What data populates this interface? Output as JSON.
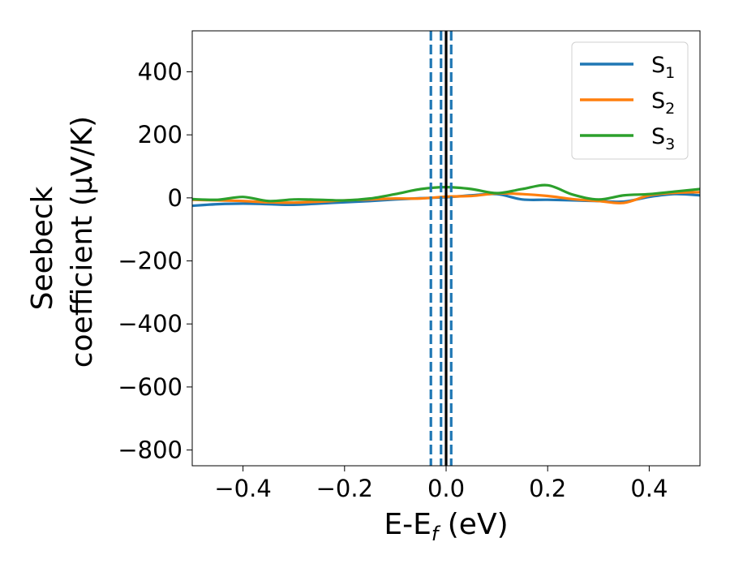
{
  "chart_data": {
    "type": "line",
    "xlabel": {
      "main": "E-E",
      "sub": "f",
      "unit": " (eV)"
    },
    "ylabel": {
      "line1": "Seebeck",
      "line2": "coefficient  (μV/K)"
    },
    "xlim": [
      -0.5,
      0.5
    ],
    "ylim": [
      -850,
      530
    ],
    "xticks": [
      -0.4,
      -0.2,
      0.0,
      0.2,
      0.4
    ],
    "xtick_labels": [
      "−0.4",
      "−0.2",
      "0.0",
      "0.2",
      "0.4"
    ],
    "yticks": [
      400,
      200,
      0,
      -200,
      -400,
      -600,
      -800
    ],
    "ytick_labels": [
      "400",
      "200",
      "0",
      "−200",
      "−400",
      "−600",
      "−800"
    ],
    "grid": false,
    "legend_position": "top-right",
    "x": [
      -0.5,
      -0.45,
      -0.4,
      -0.35,
      -0.3,
      -0.25,
      -0.2,
      -0.15,
      -0.1,
      -0.05,
      0.0,
      0.05,
      0.1,
      0.15,
      0.2,
      0.25,
      0.3,
      0.35,
      0.4,
      0.45,
      0.5
    ],
    "series": [
      {
        "name": {
          "base": "S",
          "sub": "1"
        },
        "color": "#1f77b4",
        "values": [
          -25,
          -20,
          -18,
          -20,
          -22,
          -18,
          -14,
          -10,
          -5,
          -1,
          2,
          8,
          12,
          -5,
          -6,
          -8,
          -10,
          -12,
          3,
          12,
          8
        ]
      },
      {
        "name": {
          "base": "S",
          "sub": "2"
        },
        "color": "#ff7f0e",
        "values": [
          -6,
          -8,
          -10,
          -14,
          -15,
          -12,
          -8,
          -5,
          -2,
          -2,
          4,
          6,
          14,
          12,
          6,
          -4,
          -10,
          -16,
          8,
          16,
          18
        ]
      },
      {
        "name": {
          "base": "S",
          "sub": "3"
        },
        "color": "#2ca02c",
        "values": [
          -4,
          -6,
          3,
          -10,
          -5,
          -6,
          -8,
          -2,
          12,
          28,
          34,
          28,
          15,
          28,
          40,
          10,
          -5,
          8,
          12,
          20,
          28
        ]
      }
    ],
    "vlines": [
      {
        "x": -0.03,
        "style": "dashed",
        "color": "#1f77b4"
      },
      {
        "x": -0.01,
        "style": "dashed",
        "color": "#1f77b4"
      },
      {
        "x": 0.01,
        "style": "dashed",
        "color": "#1f77b4"
      },
      {
        "x": 0.0,
        "style": "solid",
        "color": "#000000"
      }
    ]
  }
}
